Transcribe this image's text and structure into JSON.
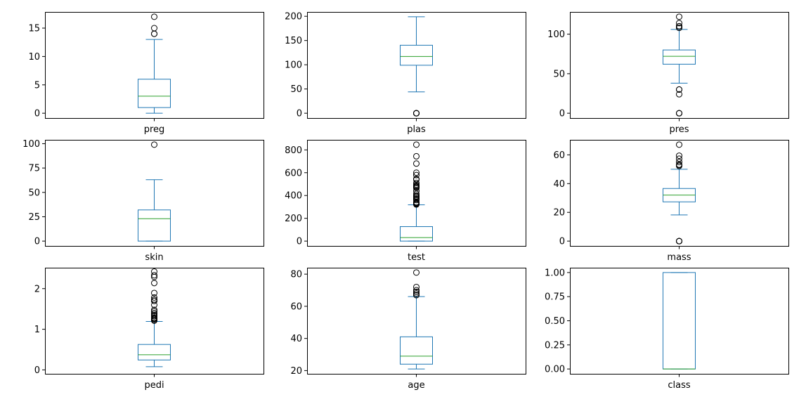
{
  "colors": {
    "box": "#1f77b4",
    "median": "#2ca02c",
    "flier": "#000000",
    "frame": "#000000",
    "background": "#ffffff"
  },
  "chart_data": [
    {
      "type": "box",
      "xlabel": "preg",
      "ylim": [
        -0.85,
        17.85
      ],
      "yticks": [
        0,
        5,
        10,
        15
      ],
      "ytick_labels": [
        "0",
        "5",
        "10",
        "15"
      ],
      "whislo": 0,
      "q1": 1,
      "median": 3,
      "q3": 6,
      "whishi": 13,
      "fliers": [
        14,
        14,
        15,
        17
      ]
    },
    {
      "type": "box",
      "xlabel": "plas",
      "ylim": [
        -9.95,
        208.95
      ],
      "yticks": [
        0,
        50,
        100,
        150,
        200
      ],
      "ytick_labels": [
        "0",
        "50",
        "100",
        "150",
        "200"
      ],
      "whislo": 44,
      "q1": 99,
      "median": 117,
      "q3": 140.25,
      "whishi": 199,
      "fliers": [
        0,
        0,
        0,
        0,
        0
      ]
    },
    {
      "type": "box",
      "xlabel": "pres",
      "ylim": [
        -6.1,
        128.1
      ],
      "yticks": [
        0,
        50,
        100
      ],
      "ytick_labels": [
        "0",
        "50",
        "100"
      ],
      "whislo": 38,
      "q1": 62,
      "median": 72,
      "q3": 80,
      "whishi": 106,
      "fliers": [
        0,
        0,
        0,
        24,
        30,
        30,
        108,
        108,
        110,
        110,
        110,
        114,
        122
      ]
    },
    {
      "type": "box",
      "xlabel": "skin",
      "ylim": [
        -4.95,
        103.95
      ],
      "yticks": [
        0,
        25,
        50,
        75,
        100
      ],
      "ytick_labels": [
        "0",
        "25",
        "50",
        "75",
        "100"
      ],
      "whislo": 0,
      "q1": 0,
      "median": 23,
      "q3": 32,
      "whishi": 63,
      "fliers": [
        99
      ]
    },
    {
      "type": "box",
      "xlabel": "test",
      "ylim": [
        -42.3,
        888.3
      ],
      "yticks": [
        0,
        200,
        400,
        600,
        800
      ],
      "ytick_labels": [
        "0",
        "200",
        "400",
        "600",
        "800"
      ],
      "whislo": 0,
      "q1": 0,
      "median": 30.5,
      "q3": 127.25,
      "whishi": 318,
      "fliers": [
        321,
        325,
        326,
        328,
        330,
        335,
        342,
        360,
        370,
        375,
        387,
        392,
        402,
        415,
        440,
        465,
        474,
        478,
        480,
        485,
        495,
        510,
        540,
        543,
        545,
        579,
        600,
        680,
        744,
        846
      ]
    },
    {
      "type": "box",
      "xlabel": "mass",
      "ylim": [
        -3.355,
        70.455
      ],
      "yticks": [
        0,
        20,
        40,
        60
      ],
      "ytick_labels": [
        "0",
        "20",
        "40",
        "60"
      ],
      "whislo": 18.2,
      "q1": 27.3,
      "median": 32,
      "q3": 36.6,
      "whishi": 50,
      "fliers": [
        0,
        0,
        0,
        0,
        52.3,
        52.9,
        53.2,
        55,
        57.3,
        59.4,
        67.1
      ]
    },
    {
      "type": "box",
      "xlabel": "pedi",
      "ylim": [
        -0.0966,
        2.5146
      ],
      "yticks": [
        0,
        1,
        2
      ],
      "ytick_labels": [
        "0",
        "1",
        "2"
      ],
      "whislo": 0.078,
      "q1": 0.244,
      "median": 0.3725,
      "q3": 0.626,
      "whishi": 1.191,
      "fliers": [
        1.213,
        1.222,
        1.224,
        1.251,
        1.258,
        1.268,
        1.282,
        1.318,
        1.321,
        1.353,
        1.39,
        1.394,
        1.441,
        1.476,
        1.6,
        1.698,
        1.699,
        1.731,
        1.781,
        1.893,
        2.137,
        2.288,
        2.329,
        2.42
      ]
    },
    {
      "type": "box",
      "xlabel": "age",
      "ylim": [
        18,
        84
      ],
      "yticks": [
        20,
        40,
        60,
        80
      ],
      "ytick_labels": [
        "20",
        "40",
        "60",
        "80"
      ],
      "whislo": 21,
      "q1": 24,
      "median": 29,
      "q3": 41,
      "whishi": 66,
      "fliers": [
        67,
        67,
        68,
        69,
        70,
        72,
        81
      ]
    },
    {
      "type": "box",
      "xlabel": "class",
      "ylim": [
        -0.05,
        1.05
      ],
      "yticks": [
        0,
        0.25,
        0.5,
        0.75,
        1
      ],
      "ytick_labels": [
        "0.00",
        "0.25",
        "0.50",
        "0.75",
        "1.00"
      ],
      "whislo": 0,
      "q1": 0,
      "median": 0,
      "q3": 1,
      "whishi": 1,
      "fliers": []
    }
  ]
}
